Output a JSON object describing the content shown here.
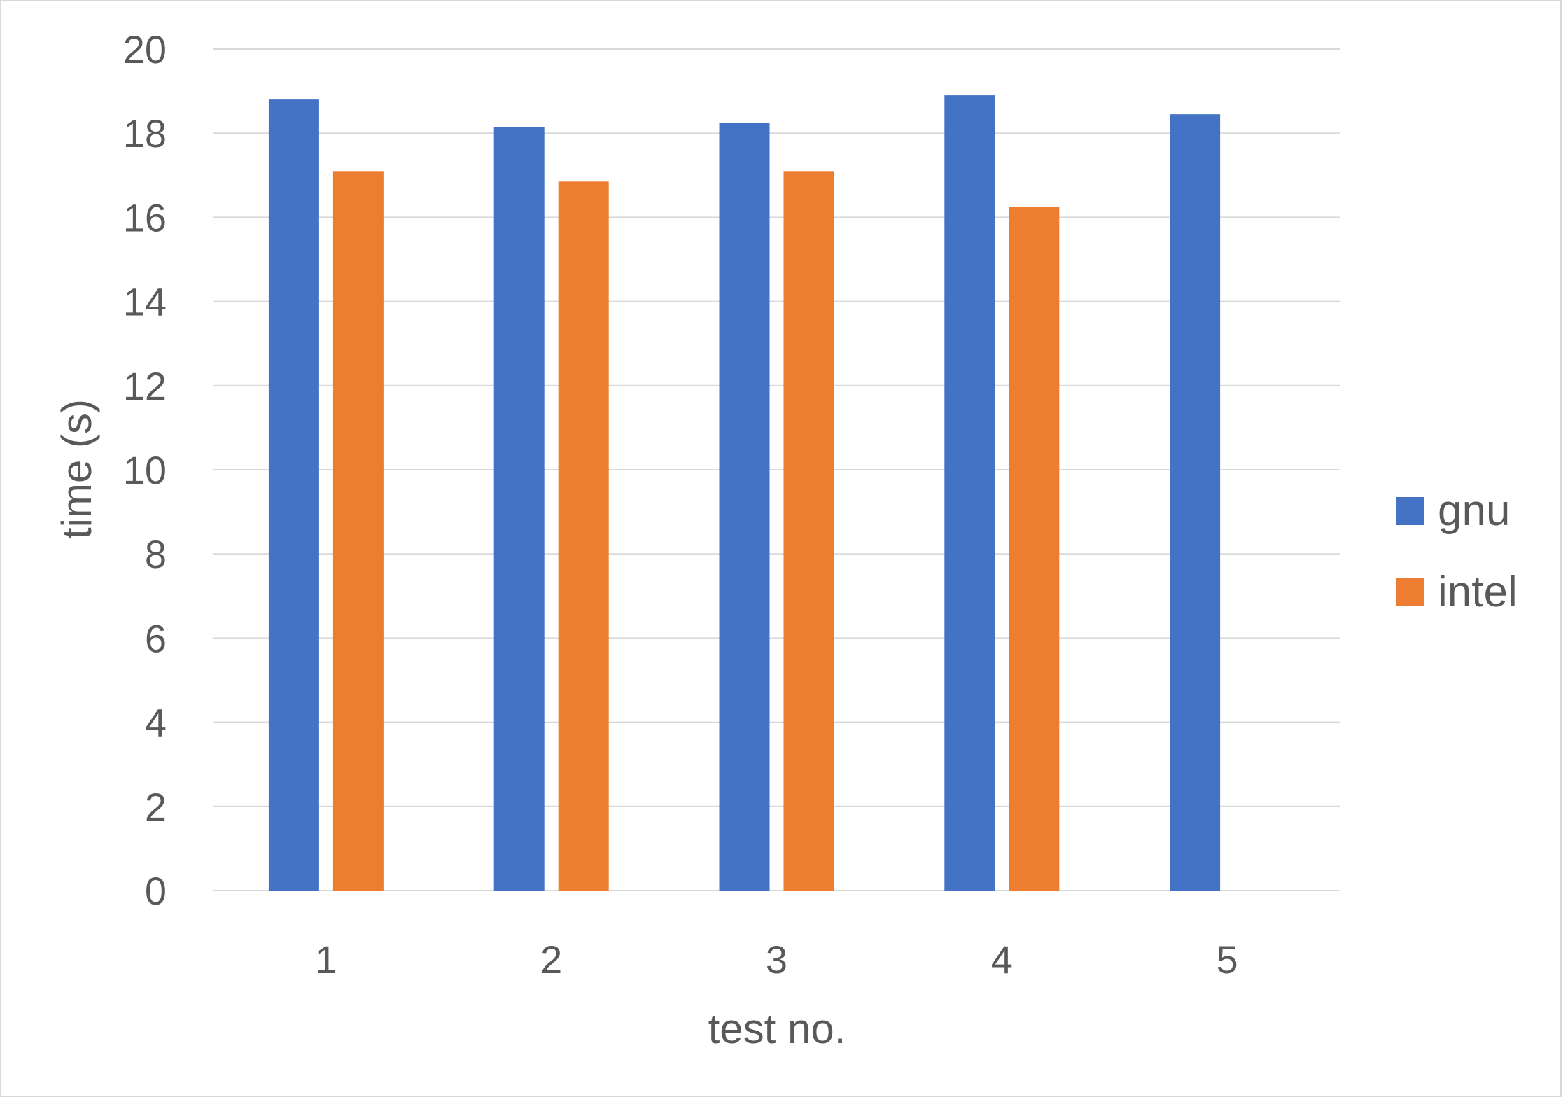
{
  "chart_data": {
    "type": "bar",
    "title": "",
    "xlabel": "test no.",
    "ylabel": "time (s)",
    "categories": [
      "1",
      "2",
      "3",
      "4",
      "5"
    ],
    "series": [
      {
        "name": "gnu",
        "color": "#4472C4",
        "values": [
          18.8,
          18.15,
          18.25,
          18.9,
          18.45
        ]
      },
      {
        "name": "intel",
        "color": "#ED7D31",
        "values": [
          17.1,
          16.85,
          17.1,
          16.25,
          null
        ]
      }
    ],
    "ylim": [
      0,
      20
    ],
    "yticks": [
      "0",
      "2",
      "4",
      "6",
      "8",
      "10",
      "12",
      "14",
      "16",
      "18",
      "20"
    ],
    "grid": true,
    "legend_position": "right"
  }
}
